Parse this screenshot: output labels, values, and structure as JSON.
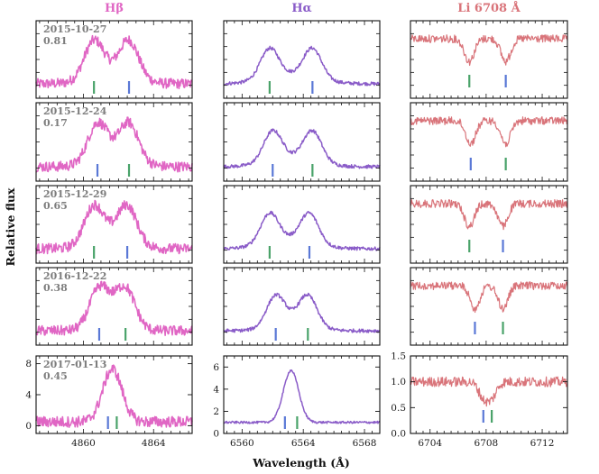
{
  "chart_data": {
    "type": "line",
    "ylabel": "Relative flux",
    "xlabel": "Wavelength (Å)",
    "colors": {
      "hbeta": "#e066c4",
      "halpha": "#8a5cc8",
      "li": "#d9747a",
      "marker_blue": "#5a78d6",
      "marker_green": "#4aa36a"
    },
    "columns": [
      {
        "key": "hbeta",
        "title": "Hβ",
        "xlim": [
          4857.3,
          4866.2
        ],
        "xticks": [
          4860,
          4864
        ],
        "minor_step": 0.5,
        "profile": "emission",
        "line_width": 1.6,
        "noise": 0.12
      },
      {
        "key": "halpha",
        "title": "Hα",
        "xlim": [
          6558.8,
          6569.0
        ],
        "xticks": [
          6560,
          6564,
          6568
        ],
        "minor_step": 0.5,
        "profile": "emission",
        "line_width": 1.5,
        "noise": 0.04
      },
      {
        "key": "li",
        "title": "Li 6708 Å",
        "xlim": [
          6702.6,
          6713.8
        ],
        "xticks": [
          6704,
          6708,
          6712
        ],
        "minor_step": 0.5,
        "profile": "absorption",
        "line_width": 1.2,
        "noise": 0.08
      }
    ],
    "rows": [
      {
        "date": "2015-10-27",
        "phase": "0.81",
        "hbeta": {
          "green": 4860.6,
          "blue": 4862.6
        },
        "halpha": {
          "green": 6561.8,
          "blue": 6564.6
        },
        "li": {
          "green": 6706.8,
          "blue": 6709.4
        }
      },
      {
        "date": "2015-12-24",
        "phase": "0.17",
        "hbeta": {
          "blue": 4860.8,
          "green": 4862.6
        },
        "halpha": {
          "blue": 6562.0,
          "green": 6564.6
        },
        "li": {
          "blue": 6706.9,
          "green": 6709.4
        }
      },
      {
        "date": "2015-12-29",
        "phase": "0.65",
        "hbeta": {
          "green": 4860.6,
          "blue": 4862.5
        },
        "halpha": {
          "green": 6561.8,
          "blue": 6564.4
        },
        "li": {
          "green": 6706.8,
          "blue": 6709.2
        }
      },
      {
        "date": "2016-12-22",
        "phase": "0.38",
        "hbeta": {
          "blue": 4860.9,
          "green": 4862.4
        },
        "halpha": {
          "blue": 6562.2,
          "green": 6564.3
        },
        "li": {
          "blue": 6707.2,
          "green": 6709.2
        }
      },
      {
        "date": "2017-01-13",
        "phase": "0.45",
        "hbeta": {
          "blue": 4861.4,
          "green": 4861.9
        },
        "halpha": {
          "blue": 6562.8,
          "green": 6563.6
        },
        "li": {
          "blue": 6707.8,
          "green": 6708.4
        }
      }
    ],
    "bottom_yaxes": {
      "hbeta": {
        "ylim": [
          -1,
          9
        ],
        "yticks": [
          0,
          4,
          8
        ]
      },
      "halpha": {
        "ylim": [
          0,
          7
        ],
        "yticks": [
          0,
          2,
          4,
          6
        ]
      },
      "li": {
        "ylim": [
          0,
          1.5
        ],
        "yticks": [
          0.0,
          0.5,
          1.0,
          1.5
        ]
      }
    }
  }
}
